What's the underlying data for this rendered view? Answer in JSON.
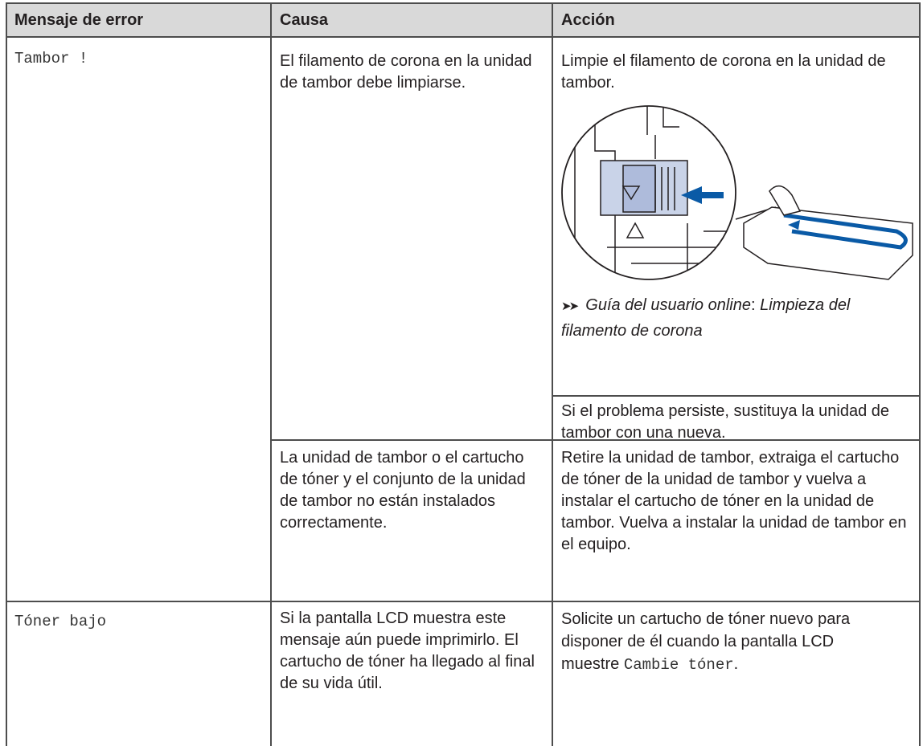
{
  "table": {
    "headers": [
      "Mensaje de error",
      "Causa",
      "Acción"
    ],
    "rows": [
      {
        "message": "Tambor !",
        "causes": [
          {
            "cause": "El filamento de corona en la unidad de tambor debe limpiarse.",
            "action": "Limpie el filamento de corona en la unidad de tambor.",
            "reference": [
              "Guía del usuario online",
              ": ",
              "Limpieza del filamento de corona"
            ],
            "note": "Si el problema persiste, sustituya la unidad de tambor con una nueva."
          },
          {
            "cause": "La unidad de tambor o el cartucho de tóner y el conjunto de la unidad de tambor no están instalados correctamente.",
            "action": "Retire la unidad de tambor, extraiga el cartucho de tóner de la unidad de tambor y vuelva a instalar el cartucho de tóner en la unidad de tambor. Vuelva a instalar la unidad de tambor en el equipo."
          }
        ]
      },
      {
        "message": "Tóner bajo",
        "causes": [
          {
            "cause": "Si la pantalla LCD muestra este mensaje aún puede imprimirlo. El cartucho de tóner ha llegado al final de su vida útil.",
            "action": [
              "Solicite un cartucho de tóner nuevo para disponer de él cuando la pantalla LCD muestre ",
              "Cambie tóner",
              "."
            ]
          }
        ]
      }
    ]
  }
}
